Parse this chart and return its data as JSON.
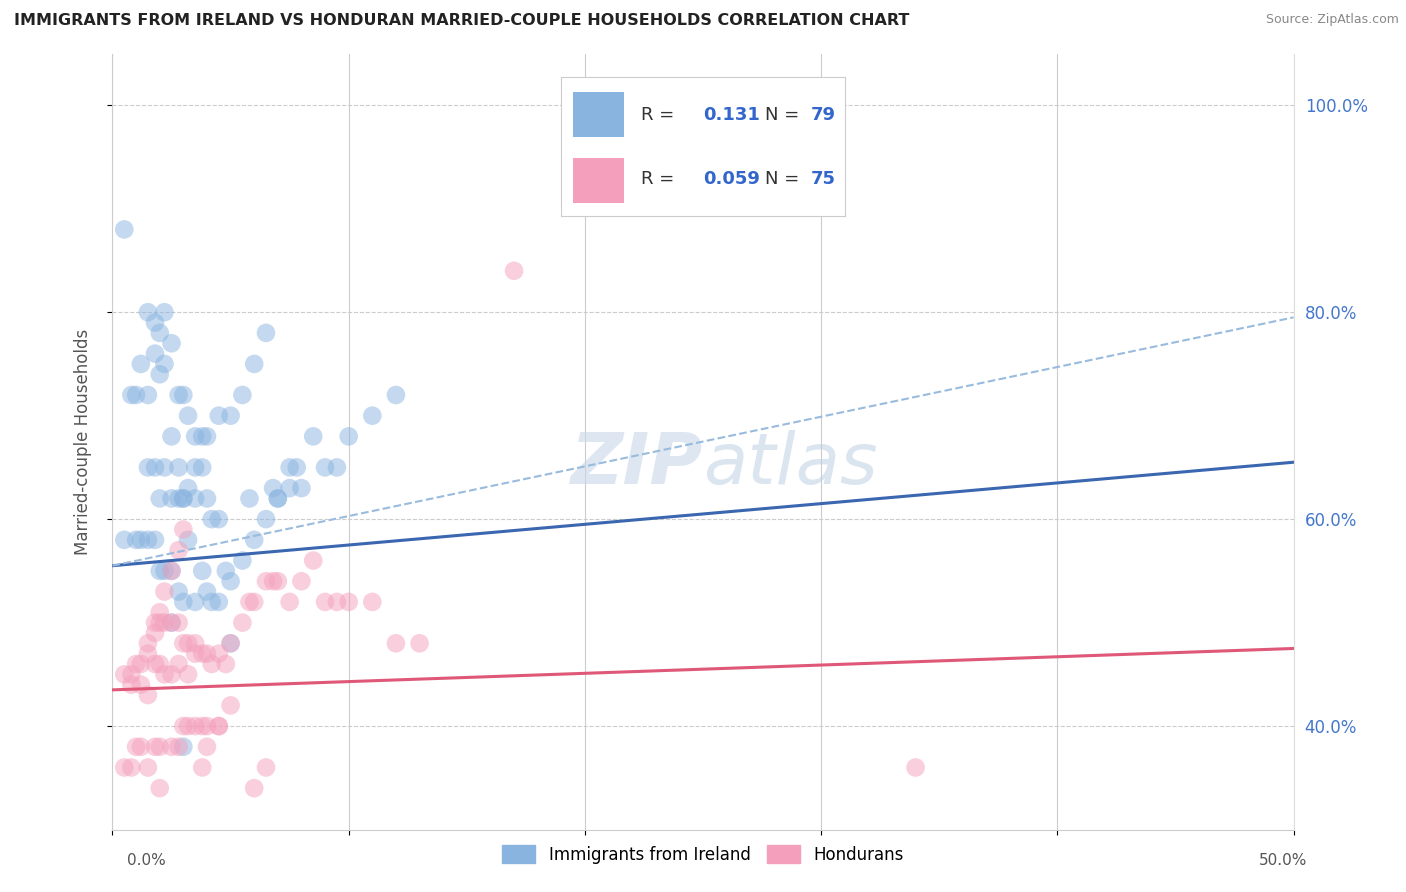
{
  "title": "IMMIGRANTS FROM IRELAND VS HONDURAN MARRIED-COUPLE HOUSEHOLDS CORRELATION CHART",
  "source": "Source: ZipAtlas.com",
  "ylabel": "Married-couple Households",
  "xlim": [
    0.0,
    0.5
  ],
  "ylim": [
    0.3,
    1.05
  ],
  "xticks": [
    0.0,
    0.1,
    0.2,
    0.3,
    0.4,
    0.5
  ],
  "xticklabels": [
    "0.0%",
    "",
    "",
    "",
    "",
    "50.0%"
  ],
  "yticks": [
    0.4,
    0.6,
    0.8,
    1.0
  ],
  "yticklabels": [
    "40.0%",
    "60.0%",
    "80.0%",
    "100.0%"
  ],
  "grid_color": "#cccccc",
  "background_color": "#ffffff",
  "blue_color": "#8ab4e0",
  "pink_color": "#f4a0bc",
  "blue_line_color": "#3a67b0",
  "pink_line_color": "#e05878",
  "dash_line_color": "#99bbdd",
  "series1_label": "Immigrants from Ireland",
  "series2_label": "Hondurans",
  "R1": 0.131,
  "N1": 79,
  "R2": 0.059,
  "N2": 75,
  "blue_trend_x0": 0.0,
  "blue_trend_y0": 0.555,
  "blue_trend_x1": 0.5,
  "blue_trend_y1": 0.655,
  "pink_trend_x0": 0.0,
  "pink_trend_y0": 0.435,
  "pink_trend_x1": 0.5,
  "pink_trend_y1": 0.475,
  "dash_trend_x0": 0.0,
  "dash_trend_y0": 0.555,
  "dash_trend_x1": 0.5,
  "dash_trend_y1": 0.795,
  "blue_scatter_x": [
    0.005,
    0.005,
    0.008,
    0.01,
    0.01,
    0.012,
    0.012,
    0.015,
    0.015,
    0.015,
    0.018,
    0.018,
    0.018,
    0.02,
    0.02,
    0.02,
    0.022,
    0.022,
    0.022,
    0.025,
    0.025,
    0.025,
    0.025,
    0.028,
    0.028,
    0.028,
    0.03,
    0.03,
    0.03,
    0.032,
    0.032,
    0.035,
    0.035,
    0.035,
    0.038,
    0.038,
    0.04,
    0.04,
    0.042,
    0.042,
    0.045,
    0.045,
    0.048,
    0.05,
    0.055,
    0.058,
    0.06,
    0.065,
    0.068,
    0.07,
    0.075,
    0.078,
    0.08,
    0.085,
    0.09,
    0.095,
    0.1,
    0.11,
    0.12,
    0.015,
    0.018,
    0.02,
    0.022,
    0.025,
    0.028,
    0.03,
    0.032,
    0.035,
    0.038,
    0.04,
    0.045,
    0.05,
    0.055,
    0.06,
    0.065,
    0.07,
    0.075,
    0.05,
    0.03
  ],
  "blue_scatter_y": [
    0.88,
    0.58,
    0.72,
    0.72,
    0.58,
    0.75,
    0.58,
    0.72,
    0.65,
    0.58,
    0.76,
    0.65,
    0.58,
    0.74,
    0.62,
    0.55,
    0.75,
    0.65,
    0.55,
    0.77,
    0.68,
    0.62,
    0.55,
    0.72,
    0.65,
    0.53,
    0.72,
    0.62,
    0.52,
    0.7,
    0.58,
    0.68,
    0.62,
    0.52,
    0.65,
    0.55,
    0.62,
    0.53,
    0.6,
    0.52,
    0.6,
    0.52,
    0.55,
    0.54,
    0.56,
    0.62,
    0.58,
    0.6,
    0.63,
    0.62,
    0.65,
    0.65,
    0.63,
    0.68,
    0.65,
    0.65,
    0.68,
    0.7,
    0.72,
    0.8,
    0.79,
    0.78,
    0.8,
    0.5,
    0.62,
    0.62,
    0.63,
    0.65,
    0.68,
    0.68,
    0.7,
    0.7,
    0.72,
    0.75,
    0.78,
    0.62,
    0.63,
    0.48,
    0.38
  ],
  "pink_scatter_x": [
    0.005,
    0.005,
    0.008,
    0.008,
    0.01,
    0.01,
    0.012,
    0.012,
    0.015,
    0.015,
    0.015,
    0.018,
    0.018,
    0.018,
    0.02,
    0.02,
    0.02,
    0.022,
    0.022,
    0.025,
    0.025,
    0.025,
    0.028,
    0.028,
    0.028,
    0.03,
    0.03,
    0.032,
    0.032,
    0.035,
    0.035,
    0.038,
    0.038,
    0.04,
    0.04,
    0.042,
    0.045,
    0.045,
    0.048,
    0.05,
    0.055,
    0.058,
    0.06,
    0.065,
    0.068,
    0.07,
    0.075,
    0.08,
    0.085,
    0.09,
    0.095,
    0.1,
    0.11,
    0.12,
    0.13,
    0.008,
    0.012,
    0.015,
    0.018,
    0.02,
    0.022,
    0.025,
    0.028,
    0.03,
    0.032,
    0.035,
    0.038,
    0.04,
    0.045,
    0.05,
    0.06,
    0.065,
    0.34,
    0.17,
    0.02
  ],
  "pink_scatter_y": [
    0.45,
    0.36,
    0.45,
    0.36,
    0.46,
    0.38,
    0.46,
    0.38,
    0.48,
    0.43,
    0.36,
    0.5,
    0.46,
    0.38,
    0.5,
    0.46,
    0.38,
    0.5,
    0.45,
    0.5,
    0.45,
    0.38,
    0.5,
    0.46,
    0.38,
    0.48,
    0.4,
    0.48,
    0.4,
    0.48,
    0.4,
    0.47,
    0.4,
    0.47,
    0.4,
    0.46,
    0.47,
    0.4,
    0.46,
    0.48,
    0.5,
    0.52,
    0.52,
    0.54,
    0.54,
    0.54,
    0.52,
    0.54,
    0.56,
    0.52,
    0.52,
    0.52,
    0.52,
    0.48,
    0.48,
    0.44,
    0.44,
    0.47,
    0.49,
    0.51,
    0.53,
    0.55,
    0.57,
    0.59,
    0.45,
    0.47,
    0.36,
    0.38,
    0.4,
    0.42,
    0.34,
    0.36,
    0.36,
    0.84,
    0.34
  ]
}
